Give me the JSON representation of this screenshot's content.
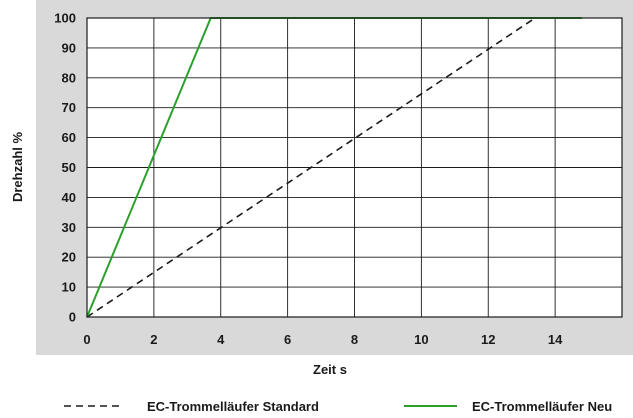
{
  "chart_data": {
    "type": "line",
    "title": "",
    "xlabel": "Zeit s",
    "ylabel": "Drehzahl %",
    "xlim": [
      0,
      16
    ],
    "ylim": [
      0,
      100
    ],
    "x_ticks": [
      "0",
      "2",
      "4",
      "6",
      "8",
      "10",
      "12",
      "14"
    ],
    "y_ticks": [
      "0",
      "10",
      "20",
      "30",
      "40",
      "50",
      "60",
      "70",
      "80",
      "90",
      "100"
    ],
    "grid": true,
    "legend_position": "bottom",
    "series": [
      {
        "name": "EC-Trommelläufer Standard",
        "style": "dashed",
        "color": "#1a1a1a",
        "points": [
          [
            0,
            0
          ],
          [
            13.4,
            100
          ],
          [
            14.8,
            100
          ]
        ]
      },
      {
        "name": "EC-Trommelläufer Neu",
        "style": "solid",
        "color": "#2ca02c",
        "points": [
          [
            0,
            0
          ],
          [
            3.7,
            100
          ],
          [
            14.8,
            100
          ]
        ]
      }
    ]
  }
}
